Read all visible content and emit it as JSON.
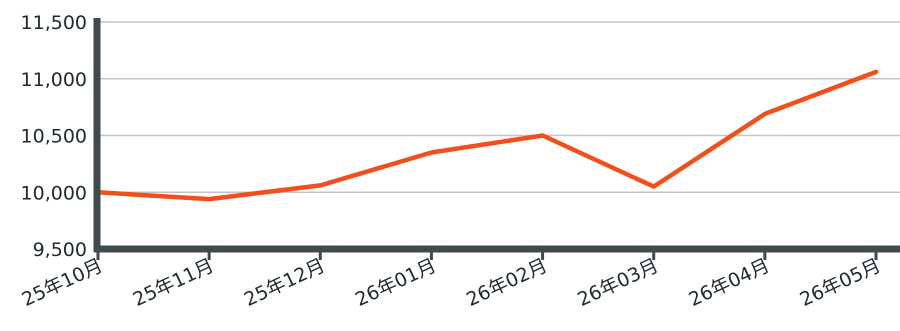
{
  "chart_data": {
    "type": "line",
    "title": "",
    "xlabel": "",
    "ylabel": "",
    "categories": [
      "25年10月",
      "25年11月",
      "25年12月",
      "26年01月",
      "26年02月",
      "26年03月",
      "26年04月",
      "26年05月"
    ],
    "series": [
      {
        "values": [
          10000,
          9940,
          10060,
          10350,
          10500,
          10050,
          10690,
          11060
        ],
        "color": "#f24f1c"
      }
    ],
    "ylim": [
      9500,
      11500
    ],
    "yticks": [
      9500,
      10000,
      10500,
      11000,
      11500
    ],
    "ytick_labels": [
      "9,500",
      "10,000",
      "10,500",
      "11,000",
      "11,500"
    ],
    "grid": true,
    "legend": "none",
    "colors": {
      "axis": "#3f4a4f",
      "grid": "#c4c4c4",
      "text": "#1f2a30",
      "line": "#f24f1c"
    }
  }
}
